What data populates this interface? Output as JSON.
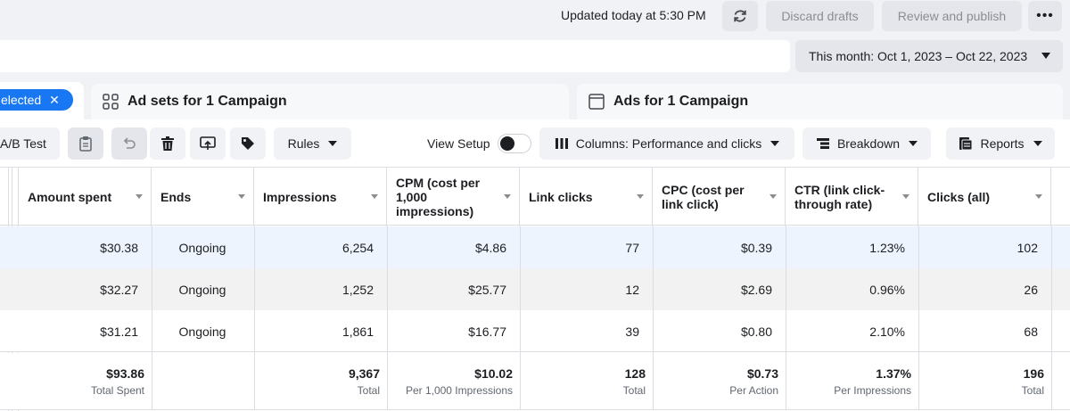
{
  "header": {
    "updated": "Updated today at 5:30 PM",
    "discard_label": "Discard drafts",
    "review_label": "Review and publish",
    "more_label": "•••"
  },
  "date_range": {
    "label": "This month: Oct 1, 2023 – Oct 22, 2023"
  },
  "tabs": {
    "selected_pill": "elected",
    "adsets": "Ad sets for 1 Campaign",
    "ads": "Ads for 1 Campaign"
  },
  "toolbar": {
    "ab_test": "A/B Test",
    "rules": "Rules",
    "view_setup": "View Setup",
    "columns": "Columns: Performance and clicks",
    "breakdown": "Breakdown",
    "reports": "Reports"
  },
  "table": {
    "headers": [
      "Amount spent",
      "Ends",
      "Impressions",
      "CPM (cost per 1,000 impressions)",
      "Link clicks",
      "CPC (cost per link click)",
      "CTR (link click-through rate)",
      "Clicks (all)"
    ],
    "rows": [
      [
        "$30.38",
        "Ongoing",
        "6,254",
        "$4.86",
        "77",
        "$0.39",
        "1.23%",
        "102"
      ],
      [
        "$32.27",
        "Ongoing",
        "1,252",
        "$25.77",
        "12",
        "$2.69",
        "0.96%",
        "26"
      ],
      [
        "$31.21",
        "Ongoing",
        "1,861",
        "$16.77",
        "39",
        "$0.80",
        "2.10%",
        "68"
      ]
    ],
    "totals": [
      {
        "value": "$93.86",
        "label": "Total Spent"
      },
      {
        "value": "",
        "label": ""
      },
      {
        "value": "9,367",
        "label": "Total"
      },
      {
        "value": "$10.02",
        "label": "Per 1,000 Impressions"
      },
      {
        "value": "128",
        "label": "Total"
      },
      {
        "value": "$0.73",
        "label": "Per Action"
      },
      {
        "value": "1.37%",
        "label": "Per Impressions"
      },
      {
        "value": "196",
        "label": "Total"
      }
    ]
  },
  "colors": {
    "accent": "#1877f2",
    "row_selected": "#eef4fe",
    "row_alt": "#f2f2f2"
  }
}
